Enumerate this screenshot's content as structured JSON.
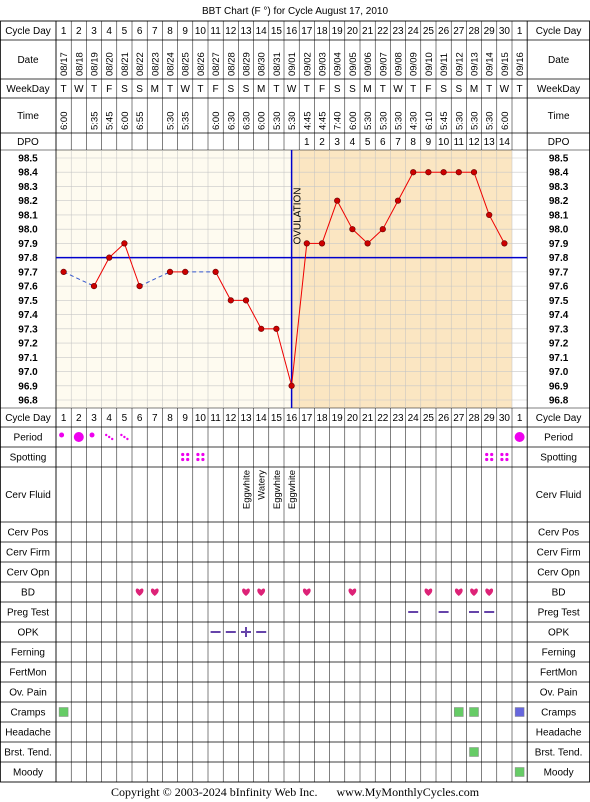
{
  "title": "BBT Chart (F °) for Cycle August 17, 2010",
  "row_labels": {
    "cycle_day": "Cycle Day",
    "date": "Date",
    "weekday": "WeekDay",
    "time": "Time",
    "dpo": "DPO",
    "period": "Period",
    "spotting": "Spotting",
    "cerv_fluid": "Cerv Fluid",
    "cerv_pos": "Cerv Pos",
    "cerv_firm": "Cerv Firm",
    "cerv_opn": "Cerv Opn",
    "bd": "BD",
    "preg_test": "Preg Test",
    "opk": "OPK",
    "ferning": "Ferning",
    "fertmon": "FertMon",
    "ov_pain": "Ov. Pain",
    "cramps": "Cramps",
    "headache": "Headache",
    "brst_tend": "Brst. Tend.",
    "moody": "Moody"
  },
  "ovulation_label": "OVULATION",
  "footer": {
    "copyright": "Copyright © 2003-2024 bInfinity Web Inc.",
    "site": "www.MyMonthlyCycles.com"
  },
  "colors": {
    "line": "#ee0000",
    "dot": "#cc0000",
    "ovulation": "#0000cc",
    "coverline": "#0000cc",
    "period": "#ee00ee",
    "grid_pre": "#fefbf0",
    "grid_post": "#fbe6c2",
    "green": "#66cc66",
    "blue_square": "#6666dd",
    "heart": "#dd2277",
    "preg_dash": "#6644aa"
  },
  "chart_data": {
    "type": "line",
    "title": "BBT Chart (F °) for Cycle August 17, 2010",
    "cycle_days": [
      "1",
      "2",
      "3",
      "4",
      "5",
      "6",
      "7",
      "8",
      "9",
      "10",
      "11",
      "12",
      "13",
      "14",
      "15",
      "16",
      "17",
      "18",
      "19",
      "20",
      "21",
      "22",
      "23",
      "24",
      "25",
      "26",
      "27",
      "28",
      "29",
      "30",
      "1"
    ],
    "dates": [
      "08/17",
      "08/18",
      "08/19",
      "08/20",
      "08/21",
      "08/22",
      "08/23",
      "08/24",
      "08/25",
      "08/26",
      "08/27",
      "08/28",
      "08/29",
      "08/30",
      "08/31",
      "09/01",
      "09/02",
      "09/03",
      "09/04",
      "09/05",
      "09/06",
      "09/07",
      "09/08",
      "09/09",
      "09/10",
      "09/11",
      "09/12",
      "09/13",
      "09/14",
      "09/15",
      "09/16"
    ],
    "weekdays": [
      "T",
      "W",
      "T",
      "F",
      "S",
      "S",
      "M",
      "T",
      "W",
      "T",
      "F",
      "S",
      "S",
      "M",
      "T",
      "W",
      "T",
      "F",
      "S",
      "S",
      "M",
      "T",
      "W",
      "T",
      "F",
      "S",
      "S",
      "M",
      "T",
      "W",
      "T"
    ],
    "times": [
      "6:00",
      "",
      "5:35",
      "5:45",
      "6:00",
      "6:55",
      "",
      "5:30",
      "5:35",
      "",
      "6:00",
      "6:30",
      "6:30",
      "6:00",
      "5:30",
      "5:30",
      "4:45",
      "4:45",
      "7:40",
      "6:00",
      "5:30",
      "5:30",
      "5:30",
      "4:30",
      "6:10",
      "5:45",
      "5:30",
      "5:30",
      "5:30",
      "6:00",
      ""
    ],
    "dpo": [
      "",
      "",
      "",
      "",
      "",
      "",
      "",
      "",
      "",
      "",
      "",
      "",
      "",
      "",
      "",
      "",
      "1",
      "2",
      "3",
      "4",
      "5",
      "6",
      "7",
      "8",
      "9",
      "10",
      "11",
      "12",
      "13",
      "14",
      ""
    ],
    "temps": [
      97.7,
      null,
      97.6,
      97.8,
      97.9,
      97.6,
      null,
      97.7,
      97.7,
      null,
      97.7,
      97.5,
      97.5,
      97.3,
      97.3,
      96.9,
      97.9,
      97.9,
      98.2,
      98.0,
      97.9,
      98.0,
      98.2,
      98.4,
      98.4,
      98.4,
      98.4,
      98.4,
      98.1,
      97.9,
      null
    ],
    "y_ticks": [
      98.5,
      98.4,
      98.3,
      98.2,
      98.1,
      98.0,
      97.9,
      97.8,
      97.7,
      97.6,
      97.5,
      97.4,
      97.3,
      97.2,
      97.1,
      97.0,
      96.9,
      96.8
    ],
    "ylim": [
      96.8,
      98.5
    ],
    "coverline": 97.8,
    "ovulation_day_index": 15,
    "cerv_fluid": [
      "",
      "",
      "",
      "",
      "",
      "",
      "",
      "",
      "",
      "",
      "",
      "",
      "Eggwhite",
      "Watery",
      "Eggwhite",
      "Eggwhite",
      "",
      "",
      "",
      "",
      "",
      "",
      "",
      "",
      "",
      "",
      "",
      "",
      "",
      "",
      ""
    ],
    "period": [
      "heavy",
      "heavy",
      "medium",
      "light",
      "light",
      "",
      "",
      "",
      "",
      "",
      "",
      "",
      "",
      "",
      "",
      "",
      "",
      "",
      "",
      "",
      "",
      "",
      "",
      "",
      "",
      "",
      "",
      "",
      "",
      "",
      "heavy"
    ],
    "spotting_days": [
      9,
      10,
      29,
      30
    ],
    "bd_days": [
      6,
      7,
      13,
      14,
      17,
      20,
      25,
      27,
      28,
      29
    ],
    "preg_test_days": [
      24,
      26,
      28,
      29
    ],
    "opk": [
      "",
      "",
      "",
      "",
      "",
      "",
      "",
      "",
      "",
      "",
      "neg",
      "neg",
      "pos",
      "neg",
      "",
      "",
      "",
      "",
      "",
      "",
      "",
      "",
      "",
      "",
      "",
      "",
      "",
      "",
      "",
      "",
      ""
    ],
    "cramps": [
      "green",
      "",
      "",
      "",
      "",
      "",
      "",
      "",
      "",
      "",
      "",
      "",
      "",
      "",
      "",
      "",
      "",
      "",
      "",
      "",
      "",
      "",
      "",
      "",
      "",
      "",
      "green",
      "green",
      "",
      "",
      "blue"
    ],
    "brst_tend_days": [
      28
    ],
    "moody_days": [
      31
    ]
  }
}
